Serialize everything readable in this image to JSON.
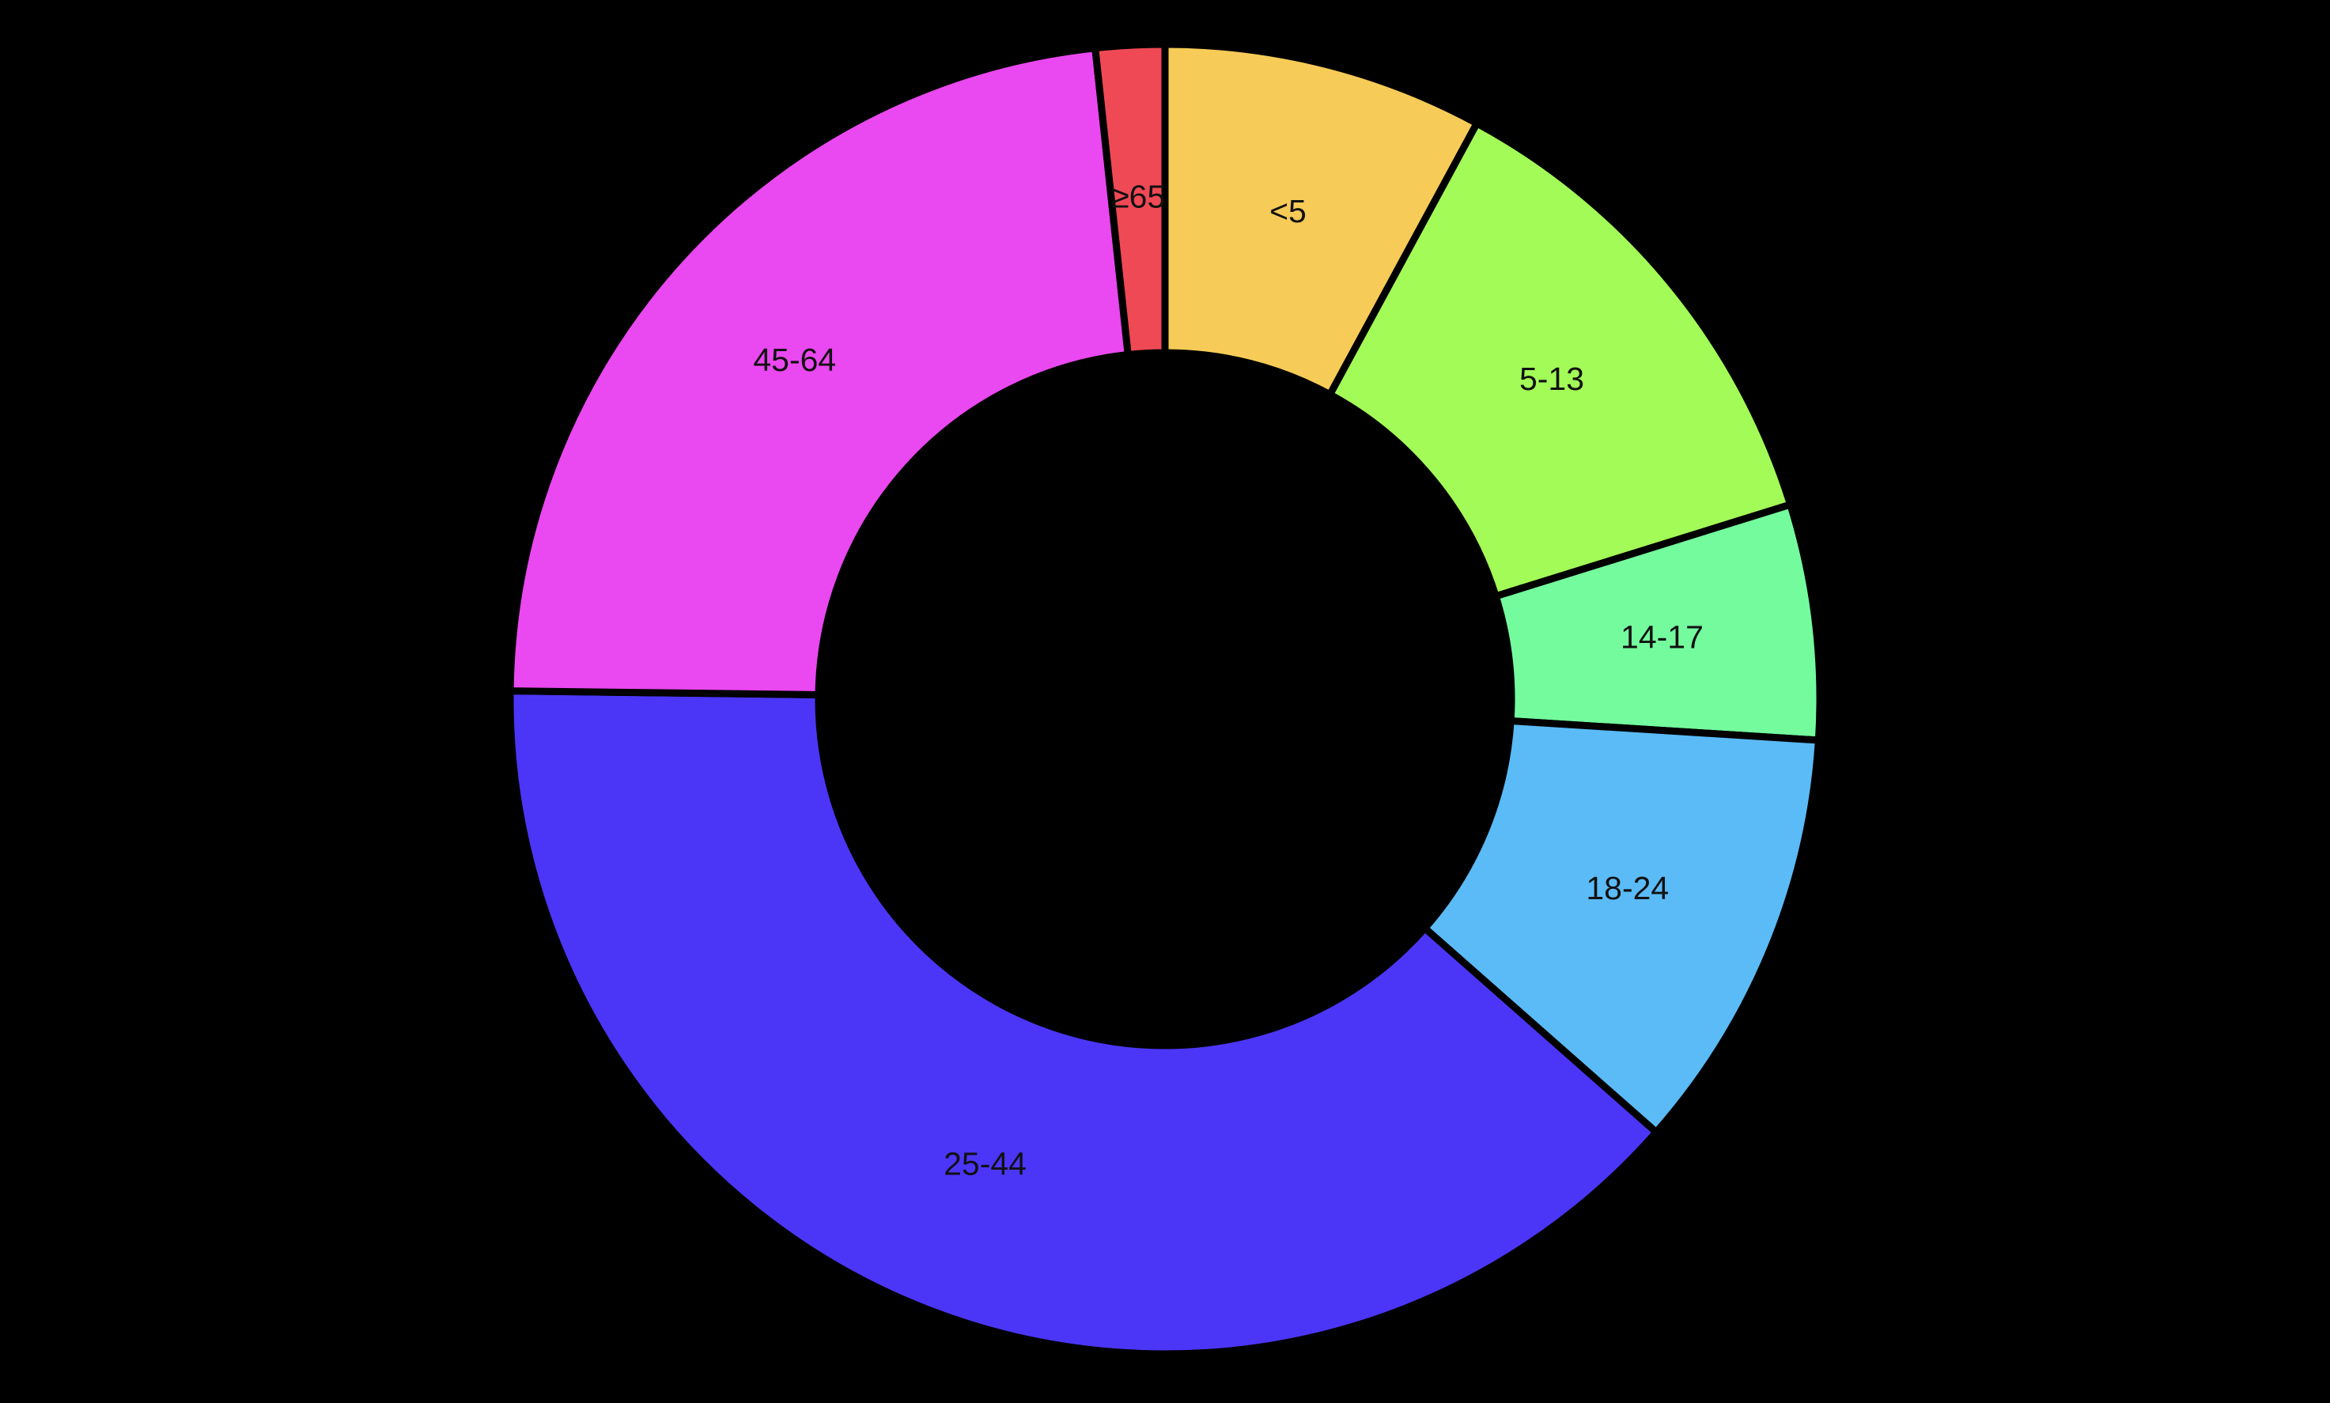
{
  "chart_data": {
    "type": "pie",
    "donut": true,
    "title": "",
    "categories": [
      "<5",
      "5-13",
      "14-17",
      "18-24",
      "25-44",
      "45-64",
      "≥65"
    ],
    "values": [
      7.9,
      12.3,
      5.8,
      10.5,
      38.7,
      23.1,
      1.7
    ],
    "colors": [
      "#f7cb57",
      "#a3fb57",
      "#74fb9e",
      "#5bbbf7",
      "#4b36f7",
      "#ea48f0",
      "#ef4955"
    ],
    "background": "#000000",
    "slice_border_color": "#000000",
    "start_angle": "12 o'clock",
    "direction": "clockwise",
    "legend": "none"
  }
}
